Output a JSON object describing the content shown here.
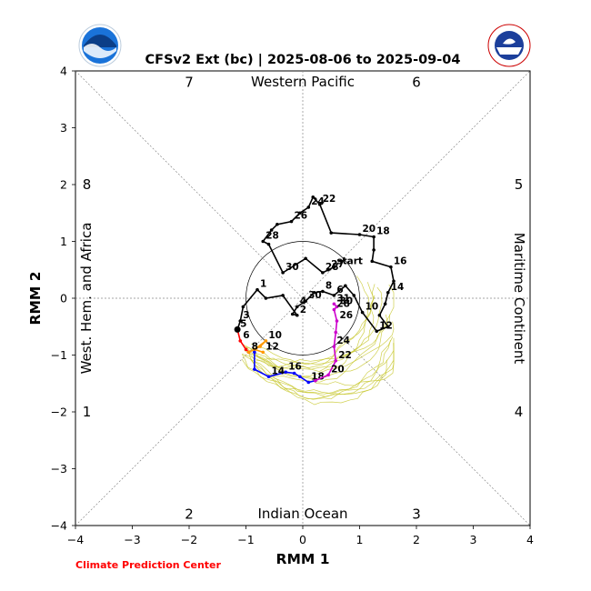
{
  "header": {
    "title": "CFSv2 Ext (bc) | 2025-08-06 to 2025-09-04",
    "credit": "Climate Prediction Center",
    "left_logo_text": "NOAA",
    "right_logo_text": "NATIONAL WEATHER SERVICE"
  },
  "colors": {
    "observed": "#000000",
    "fc_week1": "#ff0000",
    "fc_week2": "#ff9900",
    "fc_week3": "#0000ff",
    "fc_week4": "#cc00cc",
    "ensemble": "#c8c830",
    "credit": "#ff0000"
  },
  "chart_data": {
    "type": "line",
    "title": "CFSv2 Ext (bc) | 2025-08-06 to 2025-09-04",
    "xlabel": "RMM 1",
    "ylabel": "RMM 2",
    "xlim": [
      -4,
      4
    ],
    "ylim": [
      -4,
      4
    ],
    "xticks": [
      "−4",
      "−3",
      "−2",
      "−1",
      "0",
      "1",
      "2",
      "3",
      "4"
    ],
    "yticks": [
      "−4",
      "−3",
      "−2",
      "−1",
      "0",
      "1",
      "2",
      "3",
      "4"
    ],
    "grid": "dotted diagonals and axes",
    "unit_circle_radius": 1,
    "regions": {
      "top": "Western Pacific",
      "bottom": "Indian Ocean",
      "left": "West. Hem. and Africa",
      "right": "Maritime Continent"
    },
    "phases": [
      {
        "label": "7",
        "x": -2,
        "y": 3.8
      },
      {
        "label": "6",
        "x": 2,
        "y": 3.8
      },
      {
        "label": "8",
        "x": -3.8,
        "y": 2
      },
      {
        "label": "5",
        "x": 3.8,
        "y": 2
      },
      {
        "label": "1",
        "x": -3.8,
        "y": -2
      },
      {
        "label": "4",
        "x": 3.8,
        "y": -2
      },
      {
        "label": "2",
        "x": -2,
        "y": -3.8
      },
      {
        "label": "3",
        "x": 2,
        "y": -3.8
      }
    ],
    "start_label": "start",
    "series": [
      {
        "color": "#000000",
        "points": [
          [
            0.55,
            0.55
          ],
          [
            0.45,
            0.5
          ],
          [
            0.35,
            0.45
          ],
          [
            0.05,
            0.7
          ],
          [
            -0.35,
            0.45
          ],
          [
            -0.6,
            0.95
          ],
          [
            -0.7,
            1.0
          ],
          [
            -0.55,
            1.2
          ],
          [
            -0.45,
            1.3
          ],
          [
            -0.2,
            1.35
          ],
          [
            -0.05,
            1.5
          ],
          [
            0.1,
            1.6
          ],
          [
            0.18,
            1.78
          ],
          [
            0.3,
            1.65
          ],
          [
            0.5,
            1.15
          ],
          [
            1.0,
            1.12
          ],
          [
            1.25,
            1.08
          ],
          [
            1.25,
            0.85
          ],
          [
            1.22,
            0.65
          ],
          [
            1.55,
            0.55
          ],
          [
            1.6,
            0.3
          ],
          [
            1.5,
            0.1
          ],
          [
            1.45,
            -0.1
          ],
          [
            1.35,
            -0.3
          ],
          [
            1.5,
            -0.5
          ],
          [
            1.3,
            -0.58
          ],
          [
            1.05,
            -0.25
          ],
          [
            0.9,
            0.05
          ],
          [
            0.75,
            0.22
          ],
          [
            0.55,
            0.05
          ],
          [
            0.35,
            0.12
          ],
          [
            0.2,
            0.1
          ],
          [
            0.05,
            -0.05
          ],
          [
            -0.1,
            -0.15
          ],
          [
            -0.18,
            -0.28
          ],
          [
            -0.1,
            -0.3
          ],
          [
            -0.35,
            0.05
          ],
          [
            -0.65,
            -0.0
          ],
          [
            -0.8,
            0.15
          ],
          [
            -1.05,
            -0.15
          ],
          [
            -1.1,
            -0.4
          ],
          [
            -1.15,
            -0.55
          ]
        ],
        "labels": [
          {
            "text": "start",
            "at": 0
          },
          {
            "text": "27",
            "at": 1
          },
          {
            "text": "28",
            "at": 2
          },
          {
            "text": "30",
            "at": 4
          },
          {
            "text": "28",
            "at": 6
          },
          {
            "text": "26",
            "at": 9
          },
          {
            "text": "24",
            "at": 11
          },
          {
            "text": "22",
            "at": 13
          },
          {
            "text": "20",
            "at": 15
          },
          {
            "text": "18",
            "at": 16
          },
          {
            "text": "16",
            "at": 19
          },
          {
            "text": "14",
            "at": 21
          },
          {
            "text": "12",
            "at": 25
          },
          {
            "text": "10",
            "at": 26
          },
          {
            "text": "6",
            "at": 29
          },
          {
            "text": "8",
            "at": 30
          },
          {
            "text": "4",
            "at": 33
          },
          {
            "text": "2",
            "at": 35
          },
          {
            "text": "30",
            "at": 32
          },
          {
            "text": "1",
            "at": 38
          },
          {
            "text": "3",
            "at": 40
          },
          {
            "text": "5",
            "at": 41
          }
        ]
      },
      {
        "color": "#ff0000",
        "points": [
          [
            -1.15,
            -0.55
          ],
          [
            -1.1,
            -0.75
          ],
          [
            -1.0,
            -0.9
          ],
          [
            -0.95,
            -0.95
          ]
        ],
        "labels": [
          {
            "text": "6",
            "at": 1
          }
        ]
      },
      {
        "color": "#ff9900",
        "points": [
          [
            -0.95,
            -0.95
          ],
          [
            -0.75,
            -0.85
          ],
          [
            -0.65,
            -0.75
          ],
          [
            -0.85,
            -0.9
          ],
          [
            -0.7,
            -0.95
          ]
        ],
        "labels": [
          {
            "text": "8",
            "at": 0
          },
          {
            "text": "10",
            "at": 2
          },
          {
            "text": "12",
            "at": 4
          }
        ]
      },
      {
        "color": "#0000ff",
        "points": [
          [
            -0.85,
            -0.95
          ],
          [
            -0.85,
            -1.25
          ],
          [
            -0.6,
            -1.38
          ],
          [
            -0.3,
            -1.3
          ],
          [
            -0.15,
            -1.32
          ],
          [
            -0.05,
            -1.38
          ],
          [
            0.1,
            -1.48
          ],
          [
            0.22,
            -1.45
          ]
        ],
        "labels": [
          {
            "text": "14",
            "at": 2
          },
          {
            "text": "16",
            "at": 3
          },
          {
            "text": "18",
            "at": 6
          }
        ]
      },
      {
        "color": "#cc00cc",
        "points": [
          [
            0.22,
            -1.45
          ],
          [
            0.45,
            -1.35
          ],
          [
            0.58,
            -1.1
          ],
          [
            0.55,
            -0.85
          ],
          [
            0.58,
            -0.6
          ],
          [
            0.6,
            -0.4
          ],
          [
            0.55,
            -0.2
          ],
          [
            0.6,
            -0.15
          ],
          [
            0.55,
            -0.1
          ]
        ],
        "labels": [
          {
            "text": "20",
            "at": 1
          },
          {
            "text": "22",
            "at": 2
          },
          {
            "text": "24",
            "at": 3
          },
          {
            "text": "26",
            "at": 5
          },
          {
            "text": "28",
            "at": 6
          },
          {
            "text": "30",
            "at": 7
          },
          {
            "text": "31",
            "at": 8
          }
        ]
      }
    ]
  }
}
